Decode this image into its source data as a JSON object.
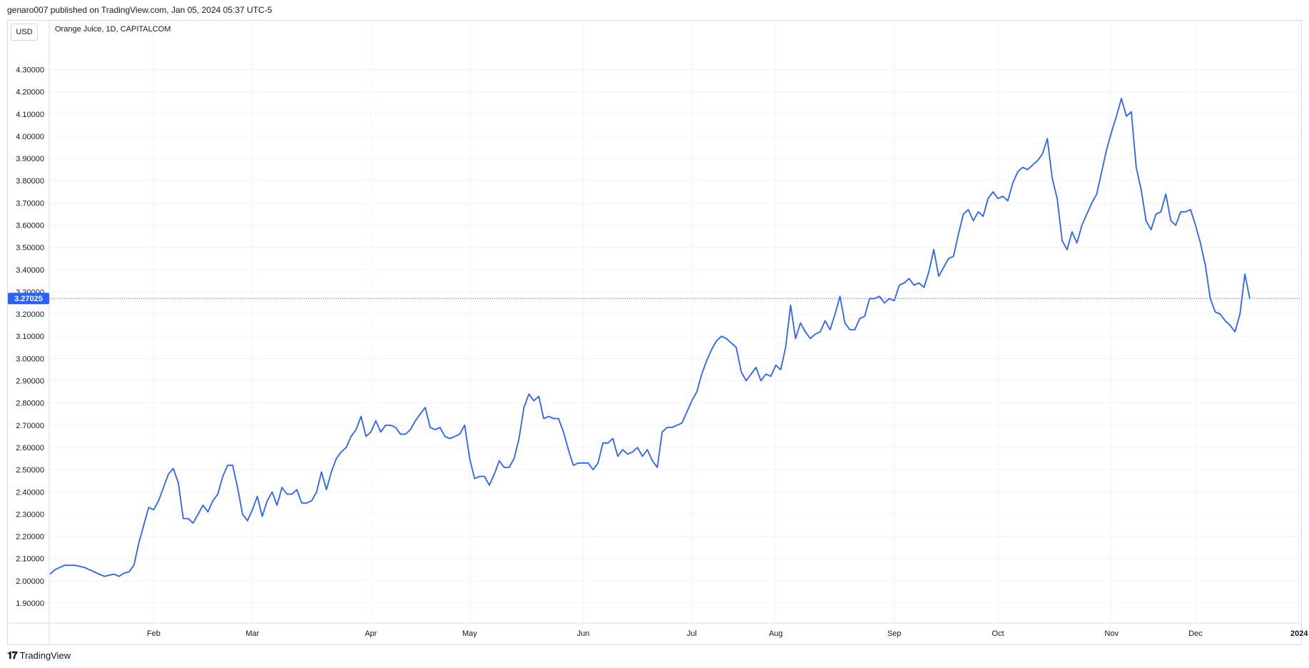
{
  "header": {
    "text": "genaro007 published on TradingView.com, Jan 05, 2024 05:37 UTC-5"
  },
  "currency": "USD",
  "symbol": "Orange Juice, 1D, CAPITALCOM",
  "footer": {
    "brand": "TradingView"
  },
  "colors": {
    "line": "#2962ff",
    "grid": "#f0f3fa",
    "badge": "#2962ff"
  },
  "chart_data": {
    "type": "line",
    "title": "Orange Juice, 1D, CAPITALCOM",
    "y_axis_position": "left",
    "ylim": [
      1.81,
      4.52
    ],
    "y_ticks": [
      "4.30000",
      "4.20000",
      "4.10000",
      "4.00000",
      "3.90000",
      "3.80000",
      "3.70000",
      "3.60000",
      "3.50000",
      "3.40000",
      "3.30000",
      "3.20000",
      "3.10000",
      "3.00000",
      "2.90000",
      "2.80000",
      "2.70000",
      "2.60000",
      "2.50000",
      "2.40000",
      "2.30000",
      "2.20000",
      "2.10000",
      "2.00000",
      "1.90000"
    ],
    "x_ticks": [
      {
        "label": "Feb",
        "index": 21,
        "bold": false
      },
      {
        "label": "Mar",
        "index": 41,
        "bold": false
      },
      {
        "label": "Apr",
        "index": 65,
        "bold": false
      },
      {
        "label": "May",
        "index": 85,
        "bold": false
      },
      {
        "label": "Jun",
        "index": 108,
        "bold": false
      },
      {
        "label": "Jul",
        "index": 130,
        "bold": false
      },
      {
        "label": "Aug",
        "index": 147,
        "bold": false
      },
      {
        "label": "Sep",
        "index": 171,
        "bold": false
      },
      {
        "label": "Oct",
        "index": 192,
        "bold": false
      },
      {
        "label": "Nov",
        "index": 215,
        "bold": false
      },
      {
        "label": "Dec",
        "index": 232,
        "bold": false
      },
      {
        "label": "2024",
        "index": 253,
        "bold": true
      }
    ],
    "last_price": "3.27025",
    "last_value": 3.27025,
    "series": [
      {
        "values": [
          2.03,
          2.05,
          2.06,
          2.07,
          2.07,
          2.07,
          2.065,
          2.06,
          2.05,
          2.04,
          2.03,
          2.02,
          2.025,
          2.03,
          2.02,
          2.035,
          2.04,
          2.07,
          2.17,
          2.25,
          2.33,
          2.32,
          2.36,
          2.42,
          2.48,
          2.505,
          2.44,
          2.28,
          2.28,
          2.26,
          2.3,
          2.34,
          2.31,
          2.36,
          2.39,
          2.47,
          2.52,
          2.52,
          2.42,
          2.3,
          2.27,
          2.32,
          2.38,
          2.29,
          2.36,
          2.4,
          2.34,
          2.42,
          2.39,
          2.39,
          2.41,
          2.35,
          2.35,
          2.36,
          2.4,
          2.49,
          2.41,
          2.49,
          2.55,
          2.58,
          2.6,
          2.65,
          2.68,
          2.74,
          2.65,
          2.67,
          2.72,
          2.67,
          2.7,
          2.7,
          2.69,
          2.66,
          2.66,
          2.68,
          2.72,
          2.75,
          2.78,
          2.69,
          2.68,
          2.69,
          2.65,
          2.64,
          2.65,
          2.66,
          2.7,
          2.55,
          2.46,
          2.47,
          2.47,
          2.43,
          2.48,
          2.54,
          2.51,
          2.51,
          2.55,
          2.64,
          2.78,
          2.84,
          2.81,
          2.83,
          2.73,
          2.74,
          2.73,
          2.73,
          2.67,
          2.59,
          2.52,
          2.53,
          2.53,
          2.53,
          2.5,
          2.53,
          2.62,
          2.62,
          2.64,
          2.56,
          2.59,
          2.57,
          2.58,
          2.6,
          2.56,
          2.59,
          2.54,
          2.51,
          2.67,
          2.69,
          2.69,
          2.7,
          2.71,
          2.76,
          2.81,
          2.85,
          2.93,
          2.99,
          3.04,
          3.08,
          3.1,
          3.09,
          3.07,
          3.05,
          2.94,
          2.9,
          2.93,
          2.96,
          2.9,
          2.93,
          2.92,
          2.97,
          2.95,
          3.05,
          3.24,
          3.09,
          3.16,
          3.12,
          3.09,
          3.11,
          3.12,
          3.17,
          3.13,
          3.2,
          3.28,
          3.16,
          3.13,
          3.13,
          3.18,
          3.19,
          3.27,
          3.27,
          3.28,
          3.25,
          3.27,
          3.26,
          3.33,
          3.34,
          3.36,
          3.33,
          3.34,
          3.32,
          3.39,
          3.49,
          3.37,
          3.41,
          3.45,
          3.46,
          3.56,
          3.65,
          3.67,
          3.62,
          3.66,
          3.64,
          3.72,
          3.75,
          3.72,
          3.73,
          3.71,
          3.79,
          3.84,
          3.86,
          3.85,
          3.87,
          3.89,
          3.92,
          3.99,
          3.81,
          3.72,
          3.53,
          3.49,
          3.57,
          3.52,
          3.6,
          3.65,
          3.7,
          3.74,
          3.84,
          3.94,
          4.02,
          4.09,
          4.17,
          4.09,
          4.11,
          3.86,
          3.76,
          3.62,
          3.58,
          3.65,
          3.66,
          3.74,
          3.62,
          3.6,
          3.66,
          3.66,
          3.67,
          3.6,
          3.52,
          3.42,
          3.27,
          3.21,
          3.2,
          3.17,
          3.15,
          3.12,
          3.2,
          3.38,
          3.27
        ]
      }
    ]
  }
}
